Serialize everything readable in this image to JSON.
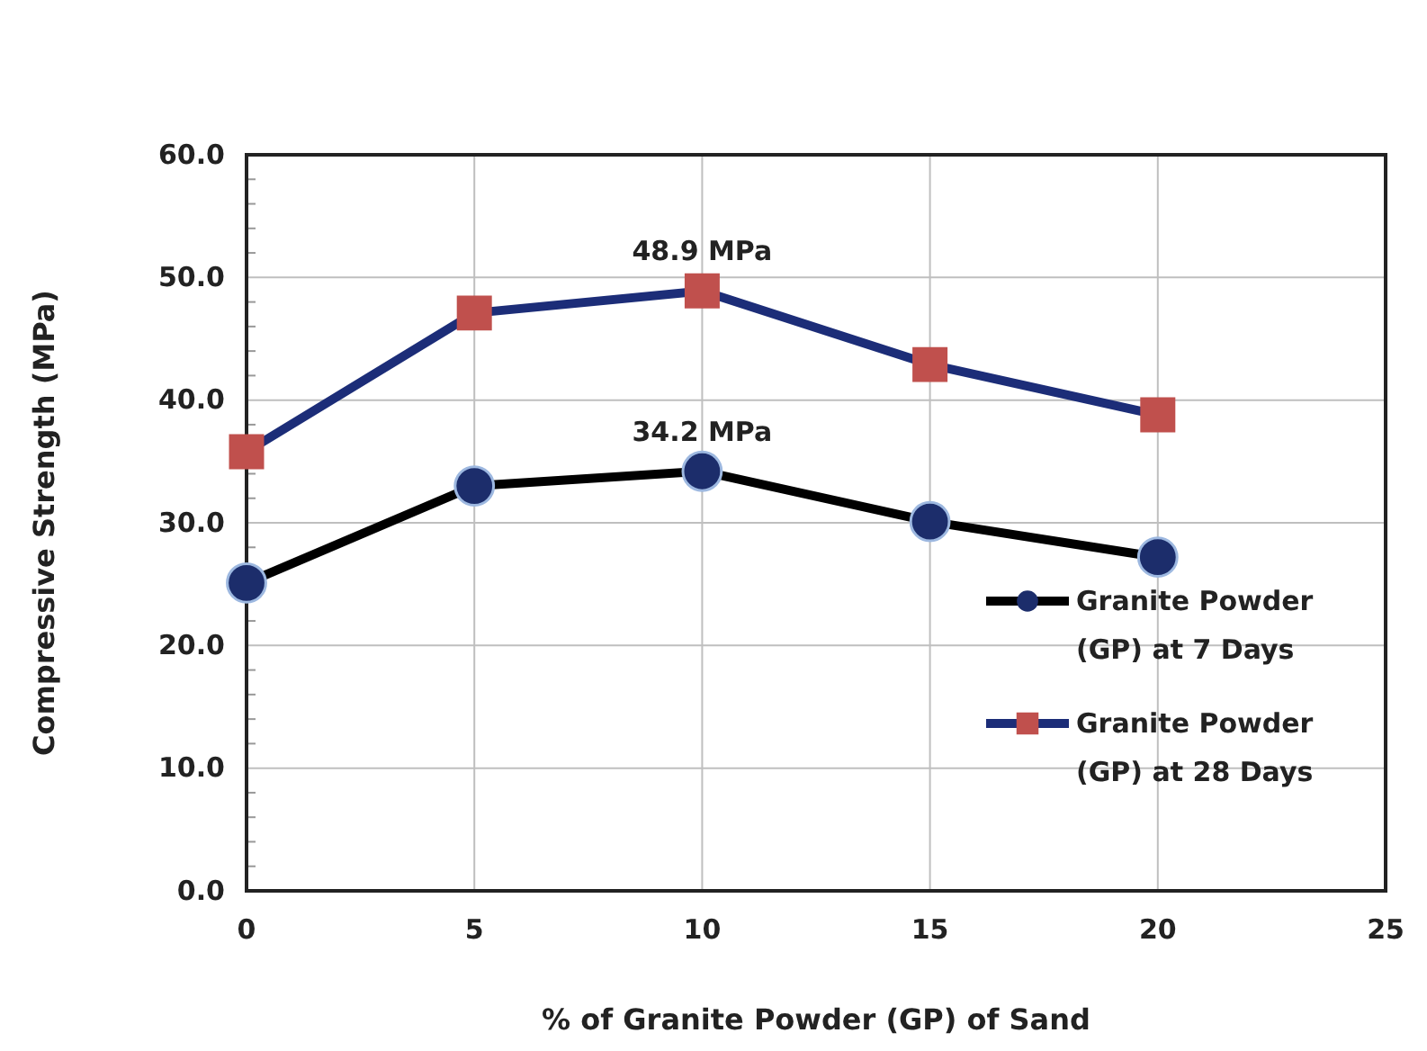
{
  "chart_data": {
    "type": "line",
    "xlabel": "% of Granite Powder (GP) of Sand",
    "ylabel": "Compressive Strength (MPa)",
    "x": [
      0,
      5,
      10,
      15,
      20
    ],
    "series": [
      {
        "name": "Granite Powder (GP) at 7  Days",
        "color": "#000000",
        "colors": [
          "#1c2d6b",
          "#1c2d6b",
          "#1c2d6b",
          "#1c2d6b",
          "#1c2d6b"
        ],
        "marker": "circle",
        "values": [
          25.1,
          33.0,
          34.2,
          30.1,
          27.2
        ]
      },
      {
        "name": "Granite Powder (GP) at 28 Days",
        "color": "#1c2d78",
        "colors": [
          "#c0504d",
          "#c0504d",
          "#c0504d",
          "#c0504d",
          "#c0504d"
        ],
        "marker": "square",
        "values": [
          35.8,
          47.1,
          48.9,
          42.9,
          38.8
        ]
      }
    ],
    "xlim": [
      0,
      25
    ],
    "xticks": [
      0,
      5,
      10,
      15,
      20,
      25
    ],
    "ylim": [
      0,
      60
    ],
    "yticks": [
      {
        "value": 0,
        "label": "0.0"
      },
      {
        "value": 2,
        "label": null
      },
      {
        "value": 4,
        "label": null
      },
      {
        "value": 6,
        "label": null
      },
      {
        "value": 8,
        "label": null
      },
      {
        "value": 10,
        "label": "10.0"
      },
      {
        "value": 12,
        "label": null
      },
      {
        "value": 14,
        "label": null
      },
      {
        "value": 16,
        "label": null
      },
      {
        "value": 18,
        "label": null
      },
      {
        "value": 20,
        "label": "20.0"
      },
      {
        "value": 22,
        "label": null
      },
      {
        "value": 24,
        "label": null
      },
      {
        "value": 26,
        "label": null
      },
      {
        "value": 28,
        "label": null
      },
      {
        "value": 30,
        "label": "30.0"
      },
      {
        "value": 32,
        "label": null
      },
      {
        "value": 34,
        "label": null
      },
      {
        "value": 36,
        "label": null
      },
      {
        "value": 38,
        "label": null
      },
      {
        "value": 40,
        "label": "40.0"
      },
      {
        "value": 42,
        "label": null
      },
      {
        "value": 44,
        "label": null
      },
      {
        "value": 46,
        "label": null
      },
      {
        "value": 48,
        "label": null
      },
      {
        "value": 50,
        "label": "50.0"
      },
      {
        "value": 52,
        "label": null
      },
      {
        "value": 54,
        "label": null
      },
      {
        "value": 56,
        "label": null
      },
      {
        "value": 58,
        "label": null
      },
      {
        "value": 60,
        "label": "60.0"
      }
    ],
    "grid": true,
    "legend": "bottom right",
    "line_style": "solid",
    "annotations": [
      {
        "text": "48.9 MPa",
        "x": 10,
        "y": 48.9
      },
      {
        "text": "34.2 MPa",
        "x": 10,
        "y": 34.2
      }
    ]
  }
}
